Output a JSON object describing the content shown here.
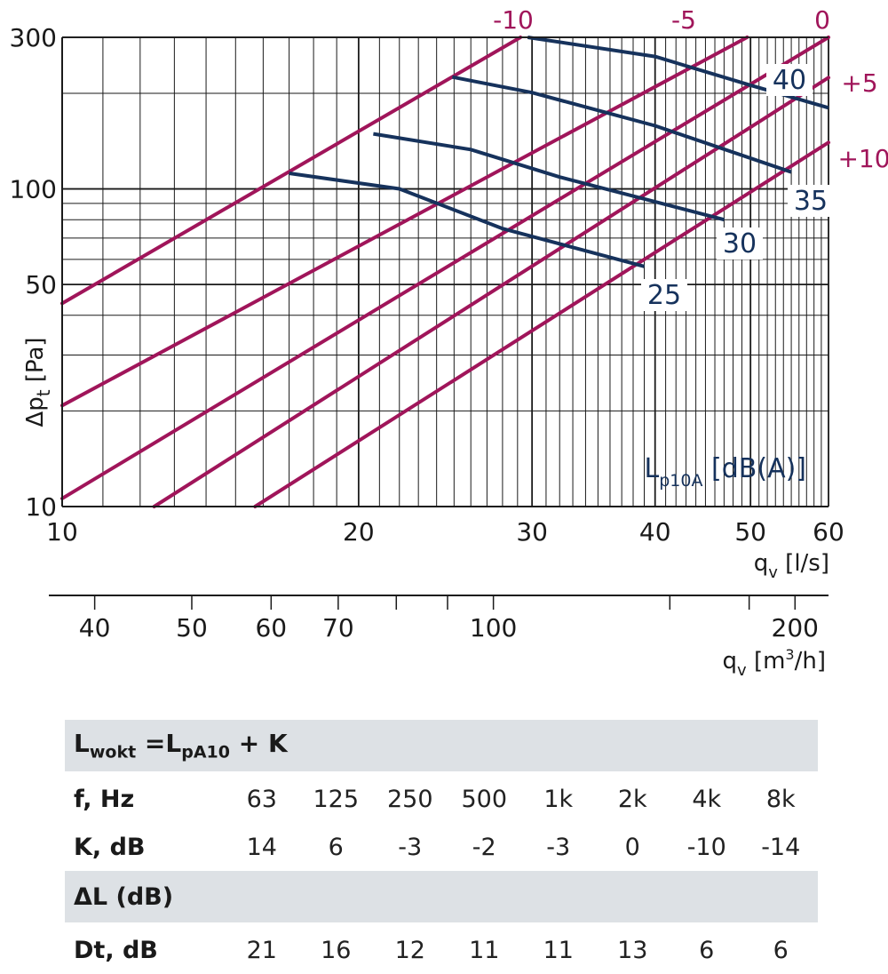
{
  "chart_data": {
    "type": "line",
    "x_scale": "log",
    "y_scale": "log",
    "xlim": [
      10,
      60
    ],
    "ylim": [
      10,
      300
    ],
    "grid": true,
    "ylabel": "Δp",
    "ylabel_sub": "t",
    "ylabel_unit": "[Pa]",
    "xlabel": "q",
    "xlabel_sub": "v",
    "xlabel_unit": "[l/s]",
    "y_tick_labels": [
      {
        "value": 10,
        "label": "10"
      },
      {
        "value": 50,
        "label": "50"
      },
      {
        "value": 100,
        "label": "100"
      },
      {
        "value": 300,
        "label": "300"
      }
    ],
    "x_tick_labels": [
      {
        "value": 10,
        "label": "10"
      },
      {
        "value": 20,
        "label": "20"
      },
      {
        "value": 30,
        "label": "30"
      },
      {
        "value": 40,
        "label": "40"
      },
      {
        "value": 50,
        "label": "50"
      },
      {
        "value": 60,
        "label": "60"
      }
    ],
    "secondary_x_axis": {
      "unit_label": "q",
      "unit_sub": "v",
      "unit": "[m",
      "unit_sup": "3",
      "unit_end": "/h]",
      "lim": [
        36,
        216
      ],
      "tick_labels": [
        {
          "value": 40,
          "label": "40"
        },
        {
          "value": 50,
          "label": "50"
        },
        {
          "value": 60,
          "label": "60"
        },
        {
          "value": 70,
          "label": "70"
        },
        {
          "value": 100,
          "label": "100"
        },
        {
          "value": 200,
          "label": "200"
        }
      ],
      "minor_ticks": [
        80,
        90,
        150,
        180
      ]
    },
    "series_correction_title": "",
    "correction_series": [
      {
        "label": "-10",
        "points": [
          [
            10,
            43.6
          ],
          [
            29.2,
            300
          ]
        ]
      },
      {
        "label": "-5",
        "points": [
          [
            10,
            20.8
          ],
          [
            49.6,
            300
          ]
        ]
      },
      {
        "label": "0",
        "points": [
          [
            10,
            10.6
          ],
          [
            60,
            300
          ]
        ]
      },
      {
        "label": "+5",
        "points": [
          [
            12.4,
            10
          ],
          [
            60,
            224
          ]
        ]
      },
      {
        "label": "+10",
        "points": [
          [
            15.7,
            10
          ],
          [
            60,
            140
          ]
        ]
      }
    ],
    "lp_title": "L",
    "lp_title_sub": "p10A",
    "lp_title_unit": "[dB(A)]",
    "lp_series": [
      {
        "label": "25",
        "points": [
          [
            17,
            112
          ],
          [
            22,
            100
          ],
          [
            28,
            75
          ],
          [
            39,
            57
          ]
        ]
      },
      {
        "label": "30",
        "points": [
          [
            20.7,
            149
          ],
          [
            26,
            133
          ],
          [
            32,
            109
          ],
          [
            47,
            80
          ]
        ]
      },
      {
        "label": "35",
        "points": [
          [
            24.9,
            225
          ],
          [
            30,
            201
          ],
          [
            40,
            158
          ],
          [
            55,
            113
          ]
        ]
      },
      {
        "label": "40",
        "points": [
          [
            29.7,
            300
          ],
          [
            40,
            261
          ],
          [
            50,
            212
          ],
          [
            60,
            180
          ]
        ]
      }
    ]
  },
  "table": {
    "formula": {
      "lhs": "L",
      "lhs_sub": "wokt",
      "eq": " =L",
      "rhs_sub": "pA10",
      "tail": " + K"
    },
    "f_label": "f, Hz",
    "frequencies": [
      "63",
      "125",
      "250",
      "500",
      "1k",
      "2k",
      "4k",
      "8k"
    ],
    "k_label": "K, dB",
    "k_values": [
      "14",
      "6",
      "-3",
      "-2",
      "-3",
      "0",
      "-10",
      "-14"
    ],
    "delta_label": "ΔL (dB)",
    "dt_label": "Dt, dB",
    "dt_values": [
      "21",
      "16",
      "12",
      "11",
      "11",
      "13",
      "6",
      "6"
    ]
  },
  "colors": {
    "correction_line": "#a0155a",
    "lp_line": "#16325c",
    "band": "#dde1e5"
  }
}
